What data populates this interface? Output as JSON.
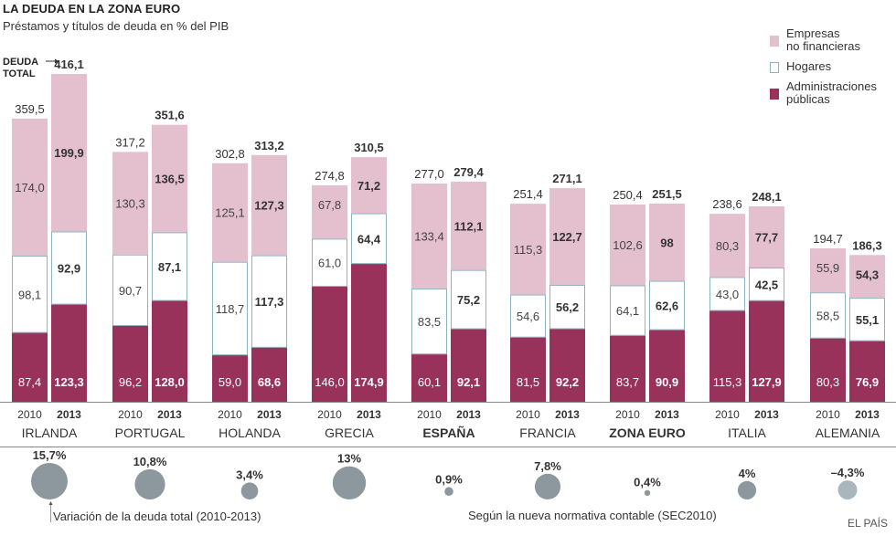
{
  "title": "LA DEUDA EN LA ZONA EURO",
  "subtitle": "Préstamos y títulos de deuda en % del PIB",
  "deuda_total_label_1": "DEUDA",
  "deuda_total_label_2": "TOTAL",
  "legend": {
    "empresas_1": "Empresas",
    "empresas_2": "no financieras",
    "hogares": "Hogares",
    "admin_1": "Administraciones",
    "admin_2": "públicas"
  },
  "colors": {
    "empresas": "#e4c0cf",
    "hogares_fill": "#ffffff",
    "hogares_border": "#8fb2c3",
    "administraciones": "#98325b",
    "bubble": "#8c989e",
    "bubble_negative": "#a9b6bb",
    "axis": "#888888"
  },
  "note_variation": "Variación de la deuda total (2010-2013)",
  "note_sec": "Según la nueva normativa contable (SEC2010)",
  "source": "EL PAÍS",
  "chart_data": {
    "type": "bar",
    "stacked": true,
    "title": "LA DEUDA EN LA ZONA EURO",
    "subtitle": "Préstamos y títulos de deuda en % del PIB",
    "xlabel": "",
    "ylabel": "% del PIB",
    "ylim": [
      0,
      420
    ],
    "years": [
      "2010",
      "2013"
    ],
    "categories": [
      "IRLANDA",
      "PORTUGAL",
      "HOLANDA",
      "GRECIA",
      "ESPAÑA",
      "FRANCIA",
      "ZONA EURO",
      "ITALIA",
      "ALEMANIA"
    ],
    "bold_categories": [
      "ESPAÑA",
      "ZONA EURO"
    ],
    "series": [
      {
        "name": "Administraciones públicas",
        "values_2010": [
          87.4,
          96.2,
          59.0,
          146.0,
          60.1,
          81.5,
          83.7,
          115.3,
          80.3
        ],
        "values_2013": [
          123.3,
          128.0,
          68.6,
          174.9,
          92.1,
          92.2,
          90.9,
          127.9,
          76.9
        ],
        "labels_2010": [
          "87,4",
          "96,2",
          "59,0",
          "146,0",
          "60,1",
          "81,5",
          "83,7",
          "115,3",
          "80,3"
        ],
        "labels_2013": [
          "123,3",
          "128,0",
          "68,6",
          "174,9",
          "92,1",
          "92,2",
          "90,9",
          "127,9",
          "76,9"
        ]
      },
      {
        "name": "Hogares",
        "values_2010": [
          98.1,
          90.7,
          118.7,
          61.0,
          83.5,
          54.6,
          64.1,
          43.0,
          58.5
        ],
        "values_2013": [
          92.9,
          87.1,
          117.3,
          64.4,
          75.2,
          56.2,
          62.6,
          42.5,
          55.1
        ],
        "labels_2010": [
          "98,1",
          "90,7",
          "118,7",
          "61,0",
          "83,5",
          "54,6",
          "64,1",
          "43,0",
          "58,5"
        ],
        "labels_2013": [
          "92,9",
          "87,1",
          "117,3",
          "64,4",
          "75,2",
          "56,2",
          "62,6",
          "42,5",
          "55,1"
        ]
      },
      {
        "name": "Empresas no financieras",
        "values_2010": [
          174.0,
          130.3,
          125.1,
          67.8,
          133.4,
          115.3,
          102.6,
          80.3,
          55.9
        ],
        "values_2013": [
          199.9,
          136.5,
          127.3,
          71.2,
          112.1,
          122.7,
          98,
          77.7,
          54.3
        ],
        "labels_2010": [
          "174,0",
          "130,3",
          "125,1",
          "67,8",
          "133,4",
          "115,3",
          "102,6",
          "80,3",
          "55,9"
        ],
        "labels_2013": [
          "199,9",
          "136,5",
          "127,3",
          "71,2",
          "112,1",
          "122,7",
          "98",
          "77,7",
          "54,3"
        ]
      }
    ],
    "totals_2010": [
      359.5,
      317.2,
      302.8,
      274.8,
      277.0,
      251.4,
      250.4,
      238.6,
      194.7
    ],
    "totals_2013": [
      416.1,
      351.6,
      313.2,
      310.5,
      279.4,
      271.1,
      251.5,
      248.1,
      186.3
    ],
    "total_labels_2010": [
      "359,5",
      "317,2",
      "302,8",
      "274,8",
      "277,0",
      "251,4",
      "250,4",
      "238,6",
      "194,7"
    ],
    "total_labels_2013": [
      "416,1",
      "351,6",
      "313,2",
      "310,5",
      "279,4",
      "271,1",
      "251,5",
      "248,1",
      "186,3"
    ],
    "variation_pct": [
      15.7,
      10.8,
      3.4,
      13,
      0.9,
      7.8,
      0.4,
      4,
      -4.3
    ],
    "variation_labels": [
      "15,7%",
      "10,8%",
      "3,4%",
      "13%",
      "0,9%",
      "7,8%",
      "0,4%",
      "4%",
      "–4,3%"
    ],
    "grid": false,
    "legend_position": "top-right"
  }
}
